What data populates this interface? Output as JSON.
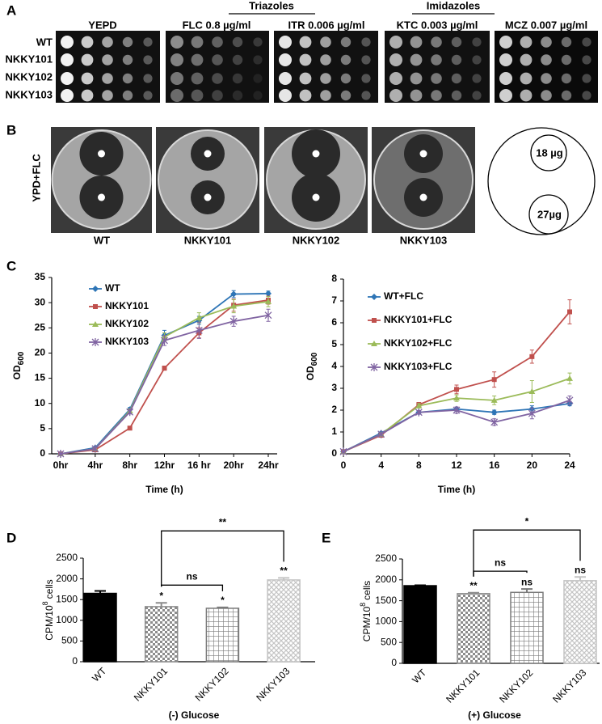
{
  "panel_labels": [
    "A",
    "B",
    "C",
    "D",
    "E"
  ],
  "panel_a": {
    "group_headers": [
      "Triazoles",
      "Imidazoles"
    ],
    "column_headers": [
      "YEPD",
      "FLC 0.8 µg/ml",
      "ITR 0.006 µg/ml",
      "KTC 0.003 µg/ml",
      "MCZ 0.007 µg/ml"
    ],
    "row_labels": [
      "WT",
      "NKKY101",
      "NKKY102",
      "NKKY103"
    ]
  },
  "panel_b": {
    "condition": "YPD+FLC",
    "plate_labels": [
      "WT",
      "NKKY101",
      "NKKY102",
      "NKKY103"
    ],
    "disc_labels": [
      "18 µg",
      "27µg"
    ]
  },
  "chart_data": [
    {
      "type": "line",
      "x_label": "Time (h)",
      "y_label": "OD",
      "y_label_sub": "600",
      "categories": [
        "0hr",
        "4hr",
        "8hr",
        "12hr",
        "16 hr",
        "20hr",
        "24hr"
      ],
      "ylim": [
        0,
        35
      ],
      "yticks": [
        0,
        5,
        10,
        15,
        20,
        25,
        30,
        35
      ],
      "legend": "upper left",
      "series": [
        {
          "name": "WT",
          "color": "#2e75b6",
          "marker": "diamond",
          "values": [
            0,
            1.2,
            8.8,
            23.5,
            26.5,
            31.7,
            31.8
          ],
          "errors": [
            0.1,
            0.2,
            0.4,
            1.0,
            0.8,
            0.7,
            0.5
          ]
        },
        {
          "name": "NKKY101",
          "color": "#c0504d",
          "marker": "square",
          "values": [
            0,
            0.8,
            5.1,
            17,
            24,
            29.5,
            30.5
          ],
          "errors": [
            0.1,
            0.2,
            0.3,
            0.4,
            1.0,
            1.2,
            0.8
          ]
        },
        {
          "name": "NKKY102",
          "color": "#9bbb59",
          "marker": "triangle",
          "values": [
            0,
            1,
            8.5,
            23.2,
            27,
            29.3,
            30.2
          ],
          "errors": [
            0.1,
            0.2,
            0.4,
            0.8,
            1.0,
            1.3,
            1.0
          ]
        },
        {
          "name": "NKKY103",
          "color": "#8064a2",
          "marker": "cross",
          "values": [
            0,
            1,
            8.3,
            22.5,
            24.5,
            26.3,
            27.5
          ],
          "errors": [
            0.1,
            0.2,
            0.4,
            1.0,
            1.6,
            1.0,
            1.2
          ]
        }
      ]
    },
    {
      "type": "line",
      "x_label": "Time (h)",
      "y_label": "OD",
      "y_label_sub": "600",
      "x": [
        0,
        4,
        8,
        12,
        16,
        20,
        24
      ],
      "xlim": [
        0,
        24
      ],
      "xticks": [
        0,
        4,
        8,
        12,
        16,
        20,
        24
      ],
      "ylim": [
        0,
        8
      ],
      "yticks": [
        0,
        1,
        2,
        3,
        4,
        5,
        6,
        7,
        8
      ],
      "legend": "upper left",
      "series": [
        {
          "name": "WT+FLC",
          "color": "#2e75b6",
          "marker": "diamond",
          "values": [
            0.1,
            0.95,
            1.9,
            2.05,
            1.9,
            2.05,
            2.3
          ],
          "errors": [
            0.02,
            0.05,
            0.08,
            0.1,
            0.1,
            0.15,
            0.1
          ]
        },
        {
          "name": "NKKY101+FLC",
          "color": "#c0504d",
          "marker": "square",
          "values": [
            0.1,
            0.85,
            2.25,
            2.95,
            3.4,
            4.45,
            6.5
          ],
          "errors": [
            0.02,
            0.05,
            0.1,
            0.2,
            0.35,
            0.3,
            0.55
          ]
        },
        {
          "name": "NKKY102+FLC",
          "color": "#9bbb59",
          "marker": "triangle",
          "values": [
            0.1,
            0.9,
            2.2,
            2.55,
            2.45,
            2.85,
            3.45
          ],
          "errors": [
            0.02,
            0.05,
            0.1,
            0.15,
            0.2,
            0.5,
            0.25
          ]
        },
        {
          "name": "NKKY103+FLC",
          "color": "#8064a2",
          "marker": "cross",
          "values": [
            0.1,
            0.9,
            1.9,
            2.0,
            1.45,
            1.85,
            2.45
          ],
          "errors": [
            0.02,
            0.05,
            0.08,
            0.15,
            0.15,
            0.25,
            0.2
          ]
        }
      ]
    },
    {
      "type": "bar",
      "x_label": "(-) Glucose",
      "y_label": "CPM/10",
      "y_label_sup": "8",
      "y_label_suffix": "cells",
      "categories": [
        "WT",
        "NKKY101",
        "NKKY102",
        "NKKY103"
      ],
      "values": [
        1650,
        1330,
        1290,
        1975
      ],
      "errors": [
        60,
        90,
        20,
        50
      ],
      "colors": [
        "#000000",
        "#8c8c8c",
        "#7a7a7a",
        "#c4c4c4"
      ],
      "significance": [
        null,
        "*",
        "*",
        "**"
      ],
      "comparisons": [
        {
          "pair": [
            "NKKY101",
            "NKKY102"
          ],
          "label": "ns"
        },
        {
          "pair": [
            "NKKY101",
            "NKKY103"
          ],
          "label": "**"
        }
      ],
      "ylim": [
        0,
        2500
      ],
      "yticks": [
        0,
        500,
        1000,
        1500,
        2000,
        2500
      ]
    },
    {
      "type": "bar",
      "x_label": "(+) Glucose",
      "y_label": "CPM/10",
      "y_label_sup": "8",
      "y_label_suffix": "cells",
      "categories": [
        "WT",
        "NKKY101",
        "NKKY102",
        "NKKY103"
      ],
      "values": [
        1860,
        1670,
        1700,
        1980
      ],
      "errors": [
        10,
        20,
        80,
        90
      ],
      "colors": [
        "#000000",
        "#8c8c8c",
        "#7a7a7a",
        "#c4c4c4"
      ],
      "significance": [
        null,
        "**",
        "ns",
        "ns"
      ],
      "comparisons": [
        {
          "pair": [
            "NKKY101",
            "NKKY102"
          ],
          "label": "ns"
        },
        {
          "pair": [
            "NKKY101",
            "NKKY103"
          ],
          "label": "*"
        }
      ],
      "ylim": [
        0,
        2500
      ],
      "yticks": [
        0,
        500,
        1000,
        1500,
        2000,
        2500
      ]
    }
  ]
}
